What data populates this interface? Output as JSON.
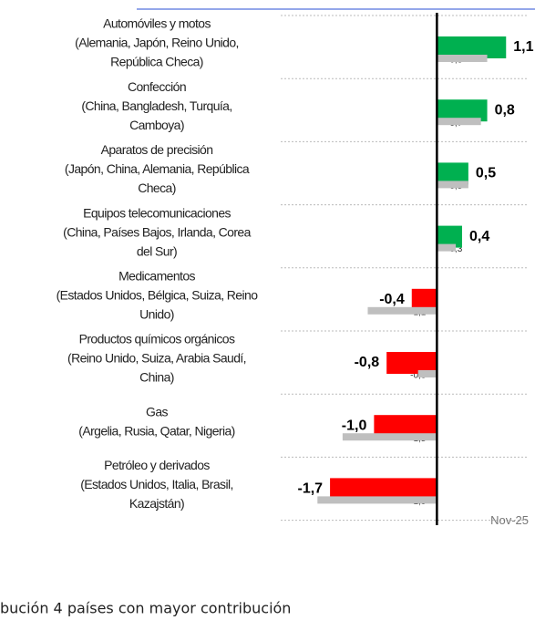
{
  "chart_data": {
    "type": "bar",
    "categories": [
      [
        "Automóviles y motos",
        "(Alemania, Japón, Reino Unido,",
        "República Checa)"
      ],
      [
        "Confección",
        "(China, Bangladesh, Turquía,",
        "Camboya)"
      ],
      [
        "Aparatos de precisión",
        "(Japón, China, Alemania, República",
        "Checa)"
      ],
      [
        "Equipos telecomunicaciones",
        "(China, Países Bajos, Irlanda, Corea",
        "del Sur)"
      ],
      [
        "Medicamentos",
        "(Estados Unidos, Bélgica, Suiza, Reino",
        "Unido)"
      ],
      [
        "Productos químicos orgánicos",
        "(Reino Unido, Suiza, Arabia Saudí,",
        "China)"
      ],
      [
        "Gas",
        "(Argelia, Rusia, Qatar, Nigeria)"
      ],
      [
        "Petróleo y derivados",
        "(Estados Unidos, Italia, Brasil,",
        "Kazajstán)"
      ]
    ],
    "series": [
      {
        "colors": [
          "#00b050",
          "#ff0000"
        ],
        "values": [
          1.1,
          0.8,
          0.5,
          0.4,
          -0.4,
          -0.8,
          -1.0,
          -1.7
        ],
        "value_labels": [
          "1,1",
          "0,8",
          "0,5",
          "0,4",
          "-0,4",
          "-0,8",
          "-1,0",
          "-1,7"
        ]
      },
      {
        "color": "#bfbfbf",
        "values": [
          0.8,
          0.7,
          0.5,
          0.3,
          -1.1,
          -0.3,
          -1.5,
          -1.9
        ],
        "value_labels": [
          "0,8",
          "0,7",
          "0,5",
          "0,3",
          "-1,1",
          "-0,3",
          "-1,5",
          "-1,9"
        ]
      }
    ],
    "xlim": [
      -2.6,
      1.56
    ],
    "annotation": "Nov-25",
    "footer_text": "bución 4 países con mayor contribución"
  }
}
